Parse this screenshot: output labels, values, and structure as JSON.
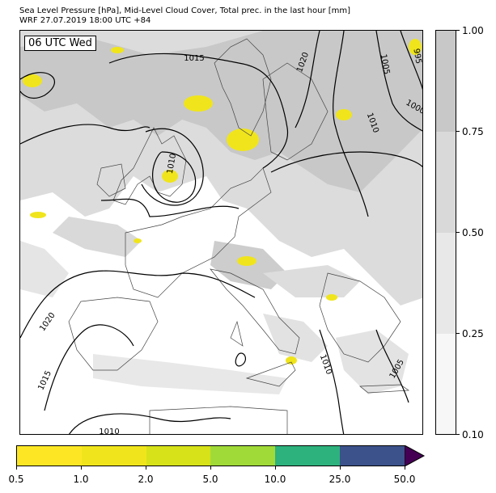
{
  "title": {
    "line1": "Sea Level Pressure [hPa], Mid-Level Cloud Cover, Total prec. in the last hour [mm]",
    "line2": "WRF 27.07.2019 18:00 UTC +84"
  },
  "time_label": "06 UTC Wed",
  "isobar_labels": [
    "1015",
    "1020",
    "1005",
    "995",
    "1000",
    "1010",
    "1010",
    "1020",
    "1015",
    "1010",
    "1010",
    "1005"
  ],
  "cloud_colorbar": {
    "ticks": [
      "0.10",
      "0.25",
      "0.50",
      "0.75",
      "1.00"
    ],
    "colors": [
      "#f7f7f7",
      "#e8e8e8",
      "#d9d9d9",
      "#c8c8c8"
    ]
  },
  "precip_colorbar": {
    "ticks": [
      "0.5",
      "1.0",
      "2.0",
      "5.0",
      "10.0",
      "25.0",
      "50.0"
    ],
    "colors": [
      "#fde725",
      "#f0e51c",
      "#d7e219",
      "#a0da39",
      "#2db27d",
      "#3b528b",
      "#440154"
    ]
  }
}
